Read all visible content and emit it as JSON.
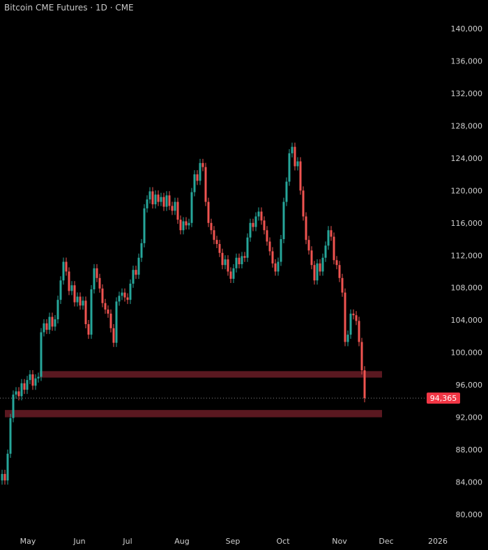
{
  "header": {
    "title": "Bitcoin CME Futures · 1D · CME"
  },
  "chart_data": {
    "type": "candlestick",
    "title": "Bitcoin CME Futures · 1D · CME",
    "colors": {
      "up": "#26a69a",
      "down": "#ef5350",
      "zone": "#5a1820",
      "background": "#000000",
      "last_price": "#f23645"
    },
    "ylim": [
      78000,
      142000
    ],
    "y_ticks": [
      80000,
      84000,
      88000,
      92000,
      96000,
      100000,
      104000,
      108000,
      112000,
      116000,
      120000,
      124000,
      128000,
      132000,
      136000,
      140000
    ],
    "y_tick_labels": [
      "80,000",
      "84,000",
      "88,000",
      "92,000",
      "96,000",
      "100,000",
      "104,000",
      "108,000",
      "112,000",
      "116,000",
      "120,000",
      "124,000",
      "128,000",
      "132,000",
      "136,000",
      "140,000"
    ],
    "x_tick_labels": [
      "May",
      "Jun",
      "Jul",
      "Aug",
      "Sep",
      "Oct",
      "Nov",
      "Dec",
      "2026"
    ],
    "grid": false,
    "last_price": 94365,
    "last_price_label": "94,365",
    "zones": [
      {
        "low": 96900,
        "high": 97700
      },
      {
        "low": 92000,
        "high": 92900
      }
    ],
    "first_open": 84200,
    "closes": [
      85.0,
      84.2,
      87.5,
      91.9,
      94.8,
      95.2,
      94.6,
      96.2,
      95.4,
      96.6,
      97.3,
      95.9,
      96.8,
      97.0,
      102.5,
      103.6,
      102.8,
      104.4,
      103.2,
      104.1,
      106.5,
      108.9,
      111.2,
      110.0,
      107.6,
      108.3,
      106.2,
      106.9,
      105.8,
      106.4,
      103.5,
      102.2,
      107.8,
      110.4,
      109.2,
      107.9,
      106.1,
      105.3,
      104.8,
      103.0,
      101.2,
      106.3,
      107.0,
      107.4,
      106.8,
      106.5,
      108.5,
      110.2,
      109.6,
      111.7,
      113.5,
      117.8,
      118.9,
      119.9,
      118.3,
      119.5,
      118.6,
      119.2,
      118.0,
      119.4,
      118.1,
      117.5,
      118.6,
      116.4,
      115.1,
      116.2,
      115.7,
      116.0,
      119.8,
      122.0,
      121.2,
      123.4,
      122.9,
      118.6,
      116.0,
      115.1,
      113.9,
      113.4,
      112.3,
      110.8,
      111.5,
      110.0,
      109.1,
      110.4,
      111.7,
      110.9,
      111.9,
      111.7,
      114.2,
      116.0,
      115.5,
      116.8,
      117.4,
      116.3,
      115.1,
      113.7,
      112.5,
      111.0,
      110.0,
      111.2,
      114.0,
      118.6,
      121.1,
      124.6,
      125.4,
      123.0,
      123.6,
      120.0,
      116.8,
      113.9,
      112.6,
      110.8,
      108.9,
      111.0,
      110.0,
      111.7,
      113.2,
      115.1,
      114.3,
      111.4,
      110.8,
      109.2,
      107.4,
      101.3,
      102.2,
      104.8,
      104.6,
      103.9,
      101.3,
      97.8,
      94.365
    ],
    "close_units": "thousands USD"
  }
}
